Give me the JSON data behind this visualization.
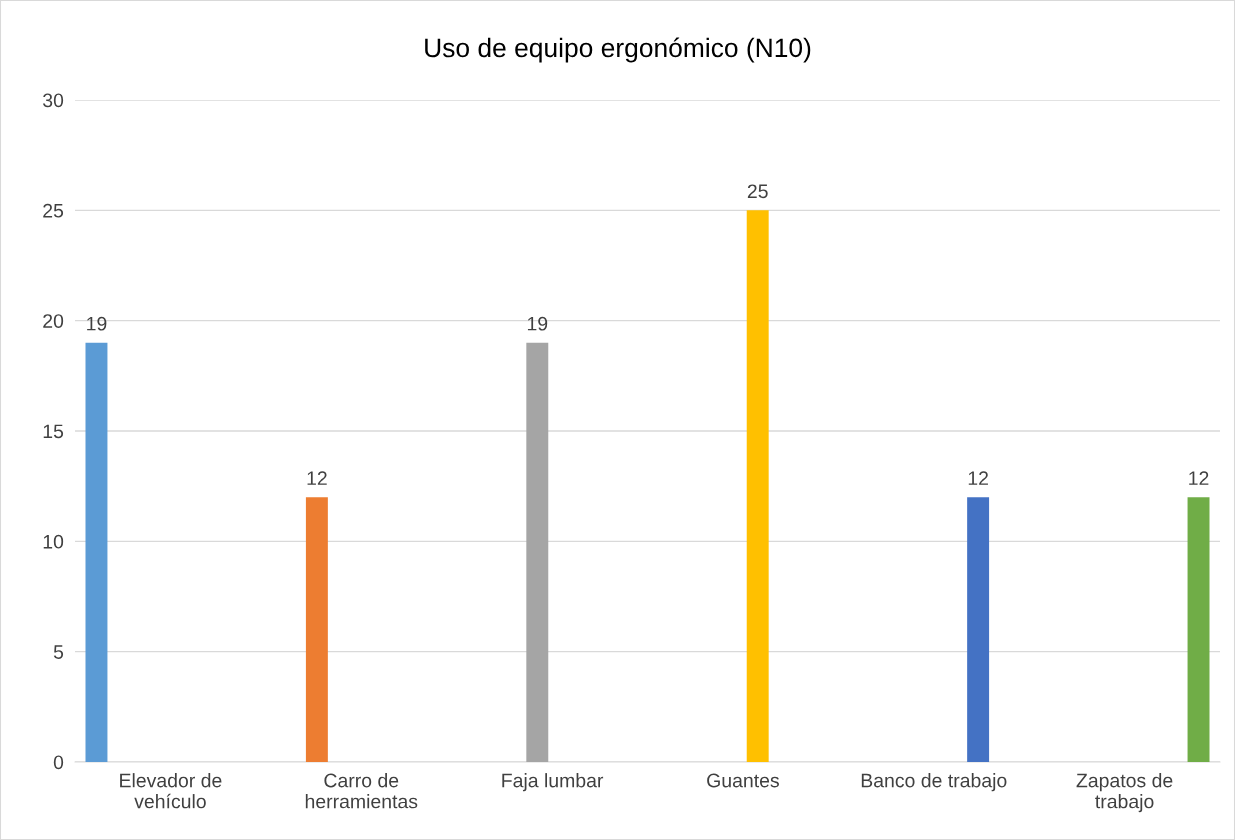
{
  "chart_data": {
    "type": "bar",
    "title": "Uso de equipo ergonómico (N10)",
    "categories": [
      "Elevador de\nvehículo",
      "Carro de\nherramientas",
      "Faja lumbar",
      "Guantes",
      "Banco de trabajo",
      "Zapatos de\ntrabajo"
    ],
    "series": [
      {
        "color": "#5b9bd5",
        "values": [
          19,
          null,
          null,
          null,
          null,
          null
        ]
      },
      {
        "color": "#ed7d31",
        "values": [
          null,
          12,
          null,
          null,
          null,
          null
        ]
      },
      {
        "color": "#a5a5a5",
        "values": [
          null,
          null,
          19,
          null,
          null,
          null
        ]
      },
      {
        "color": "#ffc000",
        "values": [
          null,
          null,
          null,
          25,
          null,
          null
        ]
      },
      {
        "color": "#4472c4",
        "values": [
          null,
          null,
          null,
          null,
          12,
          null
        ]
      },
      {
        "color": "#70ad47",
        "values": [
          null,
          null,
          null,
          null,
          null,
          12
        ]
      }
    ],
    "ylim": [
      0,
      30
    ],
    "yticks": [
      0,
      5,
      10,
      15,
      20,
      25,
      30
    ],
    "grid": "y",
    "data_labels": true
  }
}
